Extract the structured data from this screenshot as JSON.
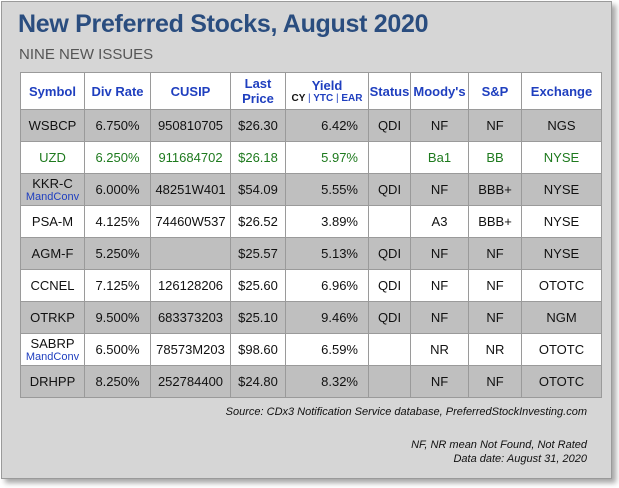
{
  "title": "New Preferred Stocks, August 2020",
  "subtitle": "NINE NEW ISSUES",
  "headers": {
    "symbol": "Symbol",
    "div_rate": "Div Rate",
    "cusip": "CUSIP",
    "last_price_1": "Last",
    "last_price_2": "Price",
    "yield": "Yield",
    "yield_cy": "CY",
    "yield_sep": "|",
    "yield_ytc": "YTC",
    "yield_ear": "EAR",
    "status": "Status",
    "moodys": "Moody's",
    "sp": "S&P",
    "exchange": "Exchange"
  },
  "rows": [
    {
      "symbol": "WSBCP",
      "note": "",
      "div_rate": "6.750%",
      "cusip": "950810705",
      "price": "$26.30",
      "yield": "6.42%",
      "status": "QDI",
      "moodys": "NF",
      "sp": "NF",
      "exchange": "NGS"
    },
    {
      "symbol": "UZD",
      "note": "",
      "div_rate": "6.250%",
      "cusip": "911684702",
      "price": "$26.18",
      "yield": "5.97%",
      "status": "",
      "moodys": "Ba1",
      "sp": "BB",
      "exchange": "NYSE"
    },
    {
      "symbol": "KKR-C",
      "note": "MandConv",
      "div_rate": "6.000%",
      "cusip": "48251W401",
      "price": "$54.09",
      "yield": "5.55%",
      "status": "QDI",
      "moodys": "NF",
      "sp": "BBB+",
      "exchange": "NYSE"
    },
    {
      "symbol": "PSA-M",
      "note": "",
      "div_rate": "4.125%",
      "cusip": "74460W537",
      "price": "$26.52",
      "yield": "3.89%",
      "status": "",
      "moodys": "A3",
      "sp": "BBB+",
      "exchange": "NYSE"
    },
    {
      "symbol": "AGM-F",
      "note": "",
      "div_rate": "5.250%",
      "cusip": "",
      "price": "$25.57",
      "yield": "5.13%",
      "status": "QDI",
      "moodys": "NF",
      "sp": "NF",
      "exchange": "NYSE"
    },
    {
      "symbol": "CCNEL",
      "note": "",
      "div_rate": "7.125%",
      "cusip": "126128206",
      "price": "$25.60",
      "yield": "6.96%",
      "status": "QDI",
      "moodys": "NF",
      "sp": "NF",
      "exchange": "OTOTC"
    },
    {
      "symbol": "OTRKP",
      "note": "",
      "div_rate": "9.500%",
      "cusip": "683373203",
      "price": "$25.10",
      "yield": "9.46%",
      "status": "QDI",
      "moodys": "NF",
      "sp": "NF",
      "exchange": "NGM"
    },
    {
      "symbol": "SABRP",
      "note": "MandConv",
      "div_rate": "6.500%",
      "cusip": "78573M203",
      "price": "$98.60",
      "yield": "6.59%",
      "status": "",
      "moodys": "NR",
      "sp": "NR",
      "exchange": "OTOTC"
    },
    {
      "symbol": "DRHPP",
      "note": "",
      "div_rate": "8.250%",
      "cusip": "252784400",
      "price": "$24.80",
      "yield": "8.32%",
      "status": "",
      "moodys": "NF",
      "sp": "NF",
      "exchange": "OTOTC"
    }
  ],
  "source": "Source: CDx3 Notification Service database, PreferredStockInvesting.com",
  "footnote_1": "NF, NR mean Not Found, Not Rated",
  "footnote_2": "Data date: August 31, 2020"
}
